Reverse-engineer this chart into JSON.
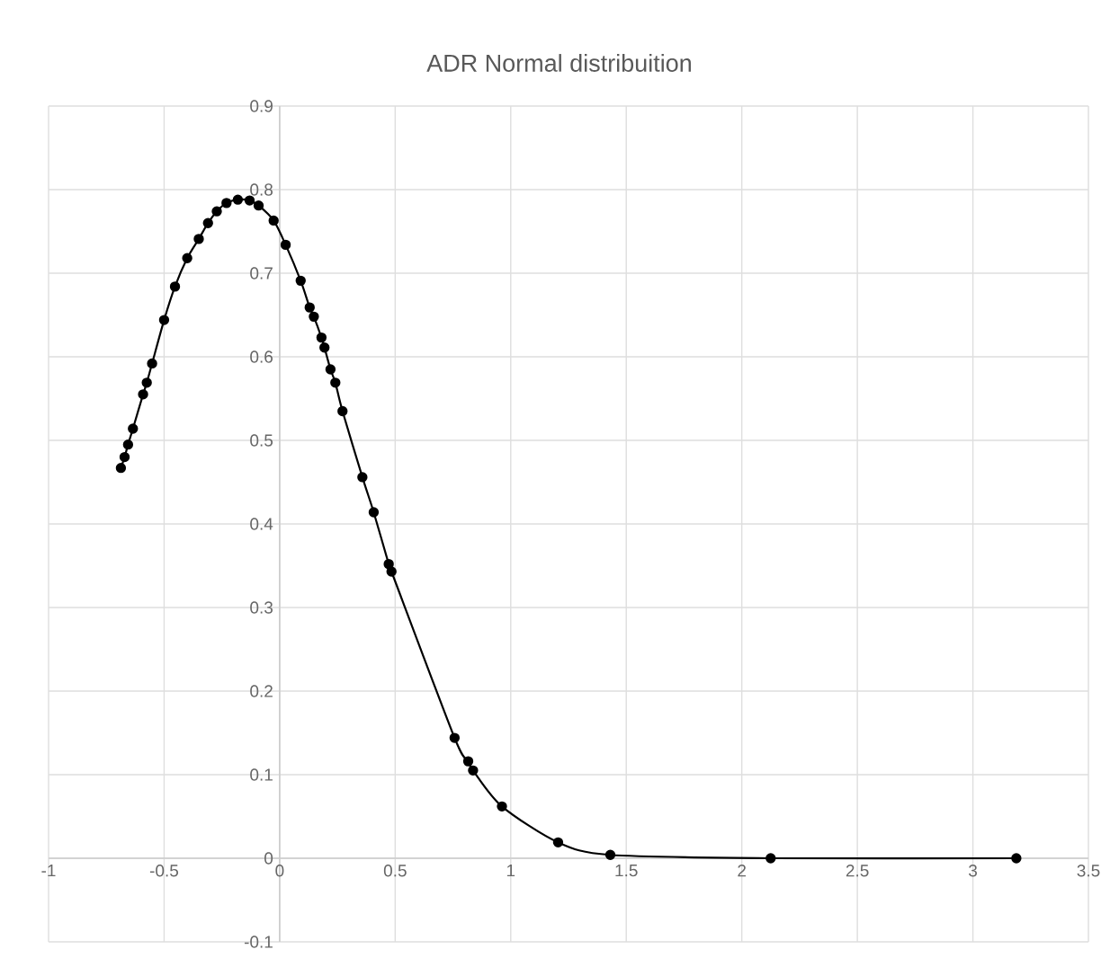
{
  "chart_data": {
    "type": "line",
    "title": "ADR Normal distribuition",
    "x": [
      -0.687,
      -0.671,
      -0.656,
      -0.635,
      -0.591,
      -0.575,
      -0.552,
      -0.5,
      -0.453,
      -0.4,
      -0.35,
      -0.31,
      -0.272,
      -0.23,
      -0.181,
      -0.13,
      -0.091,
      -0.026,
      0.026,
      0.091,
      0.13,
      0.148,
      0.181,
      0.194,
      0.22,
      0.241,
      0.272,
      0.358,
      0.407,
      0.472,
      0.484,
      0.757,
      0.816,
      0.837,
      0.962,
      1.205,
      1.431,
      2.125,
      3.188
    ],
    "series": [
      {
        "color": "#000000",
        "values": [
          0.467,
          0.48,
          0.495,
          0.514,
          0.555,
          0.569,
          0.592,
          0.644,
          0.684,
          0.718,
          0.741,
          0.76,
          0.774,
          0.784,
          0.788,
          0.787,
          0.781,
          0.763,
          0.734,
          0.691,
          0.659,
          0.648,
          0.623,
          0.611,
          0.585,
          0.569,
          0.535,
          0.456,
          0.414,
          0.352,
          0.343,
          0.144,
          0.116,
          0.105,
          0.062,
          0.019,
          0.004,
          0,
          0
        ]
      }
    ],
    "xlim": [
      -1,
      3.5
    ],
    "ylim": [
      -0.1,
      0.9
    ],
    "xticks": [
      -1,
      -0.5,
      0,
      0.5,
      1,
      1.5,
      2,
      2.5,
      3,
      3.5
    ],
    "yticks": [
      -0.1,
      0,
      0.1,
      0.2,
      0.3,
      0.4,
      0.5,
      0.6,
      0.7,
      0.8,
      0.9
    ],
    "grid": true,
    "marker": "circle",
    "line_style": "solid"
  }
}
